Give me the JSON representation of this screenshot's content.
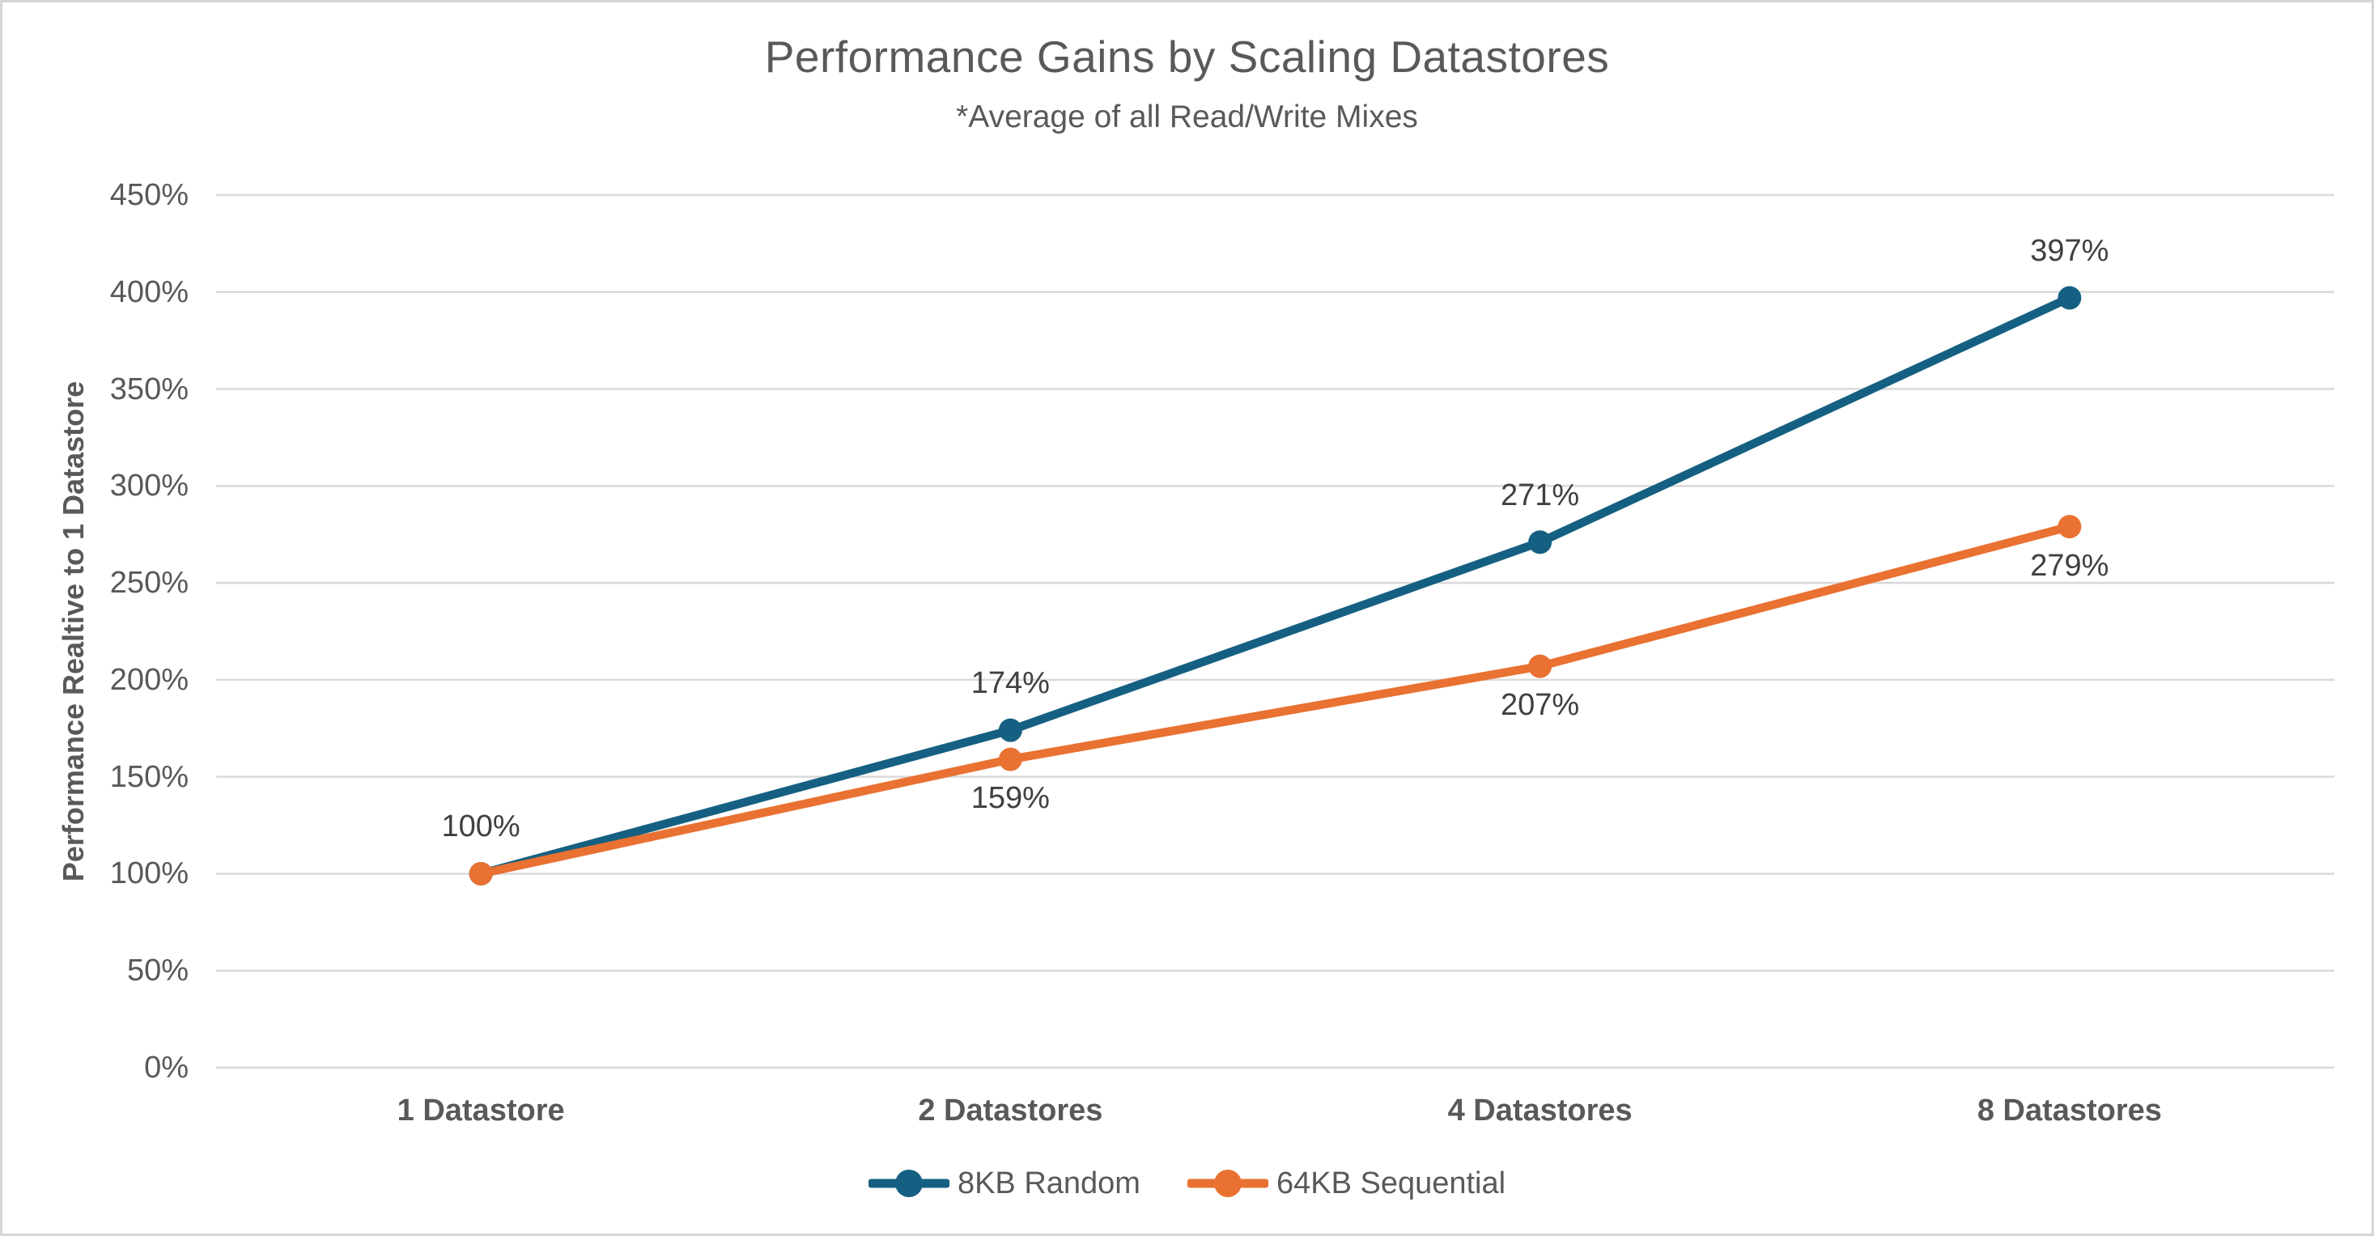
{
  "page": {
    "background_color": "#FFFFFF",
    "border_color": "#D5D5D5"
  },
  "chart": {
    "title": "Performance Gains by Scaling Datastores",
    "subtitle": "*Average of all Read/Write Mixes",
    "y_axis_title": "Performance Realtive to 1 Datastore",
    "text_color": "#595959",
    "data_label_color": "#404040",
    "gridline_color": "#D9D9D9"
  },
  "chart_data": {
    "type": "line",
    "title": "Performance Gains by Scaling Datastores",
    "subtitle": "*Average of all Read/Write Mixes",
    "xlabel": "",
    "ylabel": "Performance Realtive to 1 Datastore",
    "categories": [
      "1 Datastore",
      "2 Datastores",
      "4 Datastores",
      "8 Datastores"
    ],
    "series": [
      {
        "name": "8KB Random",
        "color": "#156082",
        "values": [
          100,
          174,
          271,
          397
        ],
        "data_labels": [
          "100%",
          "174%",
          "271%",
          "397%"
        ],
        "label_placements": [
          "above",
          "above",
          "above",
          "above"
        ]
      },
      {
        "name": "64KB Sequential",
        "color": "#E97132",
        "values": [
          100,
          159,
          207,
          279
        ],
        "data_labels": [
          null,
          "159%",
          "207%",
          "279%"
        ],
        "label_placements": [
          "above",
          "below",
          "below",
          "below"
        ]
      }
    ],
    "y_axis": {
      "min": 0,
      "max": 450,
      "step": 50,
      "tick_labels": [
        "0%",
        "50%",
        "100%",
        "150%",
        "200%",
        "250%",
        "300%",
        "350%",
        "400%",
        "450%"
      ]
    },
    "grid": true,
    "legend_position": "bottom",
    "legend_entries": [
      "8KB Random",
      "64KB Sequential"
    ]
  }
}
